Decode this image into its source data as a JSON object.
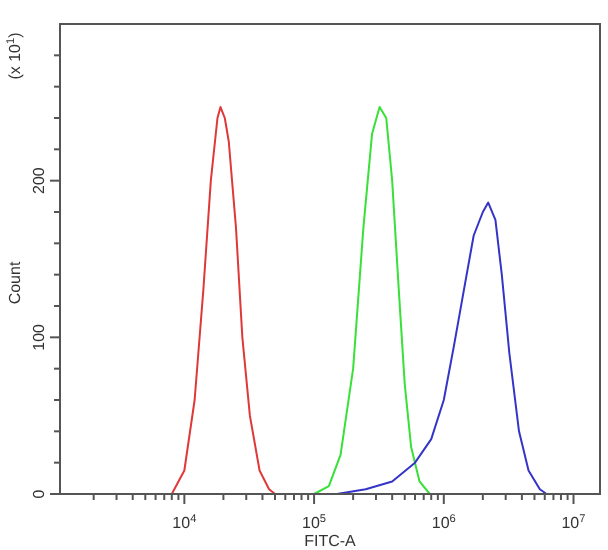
{
  "chart_data": {
    "type": "line",
    "xlabel": "FITC-A",
    "ylabel": "Count",
    "annotations": [
      "(x 10$^{1}$)"
    ],
    "log": "x",
    "grid": false,
    "marker": "none",
    "line_style": "solid",
    "xlim": [
      1100,
      16000000
    ],
    "ylim": [
      0,
      300
    ],
    "xticks": [
      {
        "value": 2000,
        "label": null
      },
      {
        "value": 3000,
        "label": null
      },
      {
        "value": 4000,
        "label": null
      },
      {
        "value": 5000,
        "label": null
      },
      {
        "value": 6000,
        "label": null
      },
      {
        "value": 7000,
        "label": null
      },
      {
        "value": 8000,
        "label": null
      },
      {
        "value": 9000,
        "label": null
      },
      {
        "value": 10000,
        "label": "10$^{4}$"
      },
      {
        "value": 20000,
        "label": null
      },
      {
        "value": 30000,
        "label": null
      },
      {
        "value": 40000,
        "label": null
      },
      {
        "value": 50000,
        "label": null
      },
      {
        "value": 60000,
        "label": null
      },
      {
        "value": 70000,
        "label": null
      },
      {
        "value": 80000,
        "label": null
      },
      {
        "value": 90000,
        "label": null
      },
      {
        "value": 100000,
        "label": "10$^{5}$"
      },
      {
        "value": 200000,
        "label": null
      },
      {
        "value": 300000,
        "label": null
      },
      {
        "value": 400000,
        "label": null
      },
      {
        "value": 500000,
        "label": null
      },
      {
        "value": 600000,
        "label": null
      },
      {
        "value": 700000,
        "label": null
      },
      {
        "value": 800000,
        "label": null
      },
      {
        "value": 900000,
        "label": null
      },
      {
        "value": 1000000,
        "label": "10$^{6}$"
      },
      {
        "value": 2000000,
        "label": null
      },
      {
        "value": 3000000,
        "label": null
      },
      {
        "value": 4000000,
        "label": null
      },
      {
        "value": 5000000,
        "label": null
      },
      {
        "value": 6000000,
        "label": null
      },
      {
        "value": 7000000,
        "label": null
      },
      {
        "value": 8000000,
        "label": null
      },
      {
        "value": 9000000,
        "label": null
      },
      {
        "value": 10000000,
        "label": "10$^{7}$"
      }
    ],
    "yticks": [
      0,
      {
        "value": 20,
        "label": null
      },
      {
        "value": 40,
        "label": null
      },
      {
        "value": 60,
        "label": null
      },
      {
        "value": 80,
        "label": null
      },
      100,
      {
        "value": 120,
        "label": null
      },
      {
        "value": 140,
        "label": null
      },
      {
        "value": 160,
        "label": null
      },
      {
        "value": 180,
        "label": null
      },
      200,
      {
        "value": 220,
        "label": null
      },
      {
        "value": 240,
        "label": null
      },
      {
        "value": 260,
        "label": null
      },
      {
        "value": 280,
        "label": null
      }
    ],
    "series": [
      {
        "color": "#e03838",
        "x": [
          8000,
          10000,
          12000,
          14000,
          16000,
          18000,
          19000,
          20500,
          22000,
          25000,
          28000,
          32000,
          38000,
          45000,
          50000
        ],
        "values": [
          0,
          15,
          60,
          130,
          200,
          240,
          247,
          240,
          225,
          170,
          100,
          50,
          15,
          3,
          0
        ]
      },
      {
        "color": "#38e038",
        "x": [
          100000,
          130000,
          160000,
          200000,
          240000,
          280000,
          320000,
          360000,
          400000,
          450000,
          500000,
          560000,
          650000,
          780000
        ],
        "values": [
          0,
          5,
          25,
          80,
          170,
          230,
          247,
          240,
          200,
          130,
          70,
          30,
          8,
          0
        ]
      },
      {
        "color": "#3434c8",
        "x": [
          150000,
          250000,
          400000,
          600000,
          800000,
          1000000,
          1200000,
          1500000,
          1700000,
          2000000,
          2200000,
          2500000,
          2800000,
          3200000,
          3800000,
          4500000,
          5500000,
          6200000
        ],
        "values": [
          0,
          3,
          8,
          20,
          35,
          60,
          95,
          140,
          165,
          180,
          186,
          175,
          140,
          90,
          40,
          15,
          3,
          0
        ]
      }
    ]
  }
}
